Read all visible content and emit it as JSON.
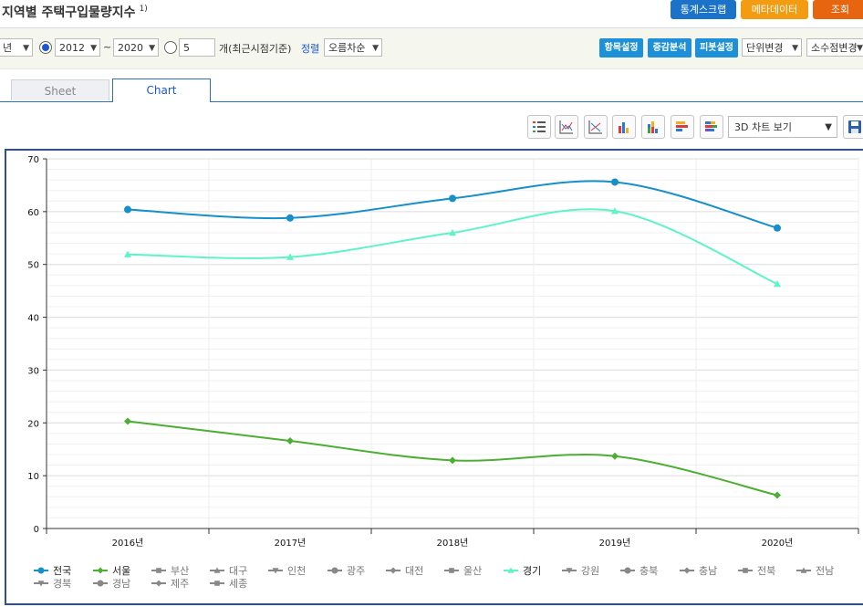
{
  "header": {
    "title": "지역별 주택구입물량지수",
    "footnote": "1)",
    "buttons": [
      "통계스크랩",
      "메타데이터",
      "조회"
    ]
  },
  "options": {
    "period_unit": "년",
    "from": "2012",
    "tilde": "~",
    "to": "2020",
    "recent_count": "5",
    "recent_label": "개(최근시점기준)",
    "sort_label": "정렬",
    "sort_value": "오름차순",
    "buttons": [
      "항목설정",
      "증감분석",
      "피봇설정"
    ],
    "unit_change": "단위변경",
    "decimal_change": "소수점변경"
  },
  "tabs": {
    "sheet": "Sheet",
    "chart": "Chart"
  },
  "toolbar": {
    "chart_type": "3D 차트 보기"
  },
  "chart_data": {
    "type": "line",
    "categories": [
      "2016년",
      "2017년",
      "2018년",
      "2019년",
      "2020년"
    ],
    "ylim": [
      0,
      70
    ],
    "yticks": [
      "0",
      "10",
      "20",
      "30",
      "40",
      "50",
      "60",
      "70"
    ],
    "grid": true,
    "legend_position": "bottom",
    "series": [
      {
        "name": "전국",
        "values": [
          60.4,
          58.8,
          62.5,
          65.6,
          56.9
        ],
        "color": "#168fca",
        "marker": "circle"
      },
      {
        "name": "서울",
        "values": [
          20.3,
          16.6,
          12.9,
          13.7,
          6.3
        ],
        "color": "#4cae33",
        "marker": "diamond"
      },
      {
        "name": "경기",
        "values": [
          51.9,
          51.4,
          56.0,
          60.1,
          46.3
        ],
        "color": "#5ef4c8",
        "marker": "triangle"
      }
    ],
    "legend": [
      {
        "name": "전국",
        "marker": "circle",
        "active": true,
        "color": "#168fca"
      },
      {
        "name": "서울",
        "marker": "diamond",
        "active": true,
        "color": "#4cae33"
      },
      {
        "name": "부산",
        "marker": "square",
        "active": false
      },
      {
        "name": "대구",
        "marker": "triangle",
        "active": false
      },
      {
        "name": "인천",
        "marker": "tri-down",
        "active": false
      },
      {
        "name": "광주",
        "marker": "circle",
        "active": false
      },
      {
        "name": "대전",
        "marker": "diamond",
        "active": false
      },
      {
        "name": "울산",
        "marker": "square",
        "active": false
      },
      {
        "name": "경기",
        "marker": "triangle",
        "active": true,
        "color": "#5ef4c8"
      },
      {
        "name": "강원",
        "marker": "tri-down",
        "active": false
      },
      {
        "name": "충북",
        "marker": "circle",
        "active": false
      },
      {
        "name": "충남",
        "marker": "diamond",
        "active": false
      },
      {
        "name": "전북",
        "marker": "square",
        "active": false
      },
      {
        "name": "전남",
        "marker": "triangle",
        "active": false
      },
      {
        "name": "경북",
        "marker": "tri-down",
        "active": false
      },
      {
        "name": "경남",
        "marker": "circle",
        "active": false
      },
      {
        "name": "제주",
        "marker": "diamond",
        "active": false
      },
      {
        "name": "세종",
        "marker": "square",
        "active": false
      }
    ]
  }
}
